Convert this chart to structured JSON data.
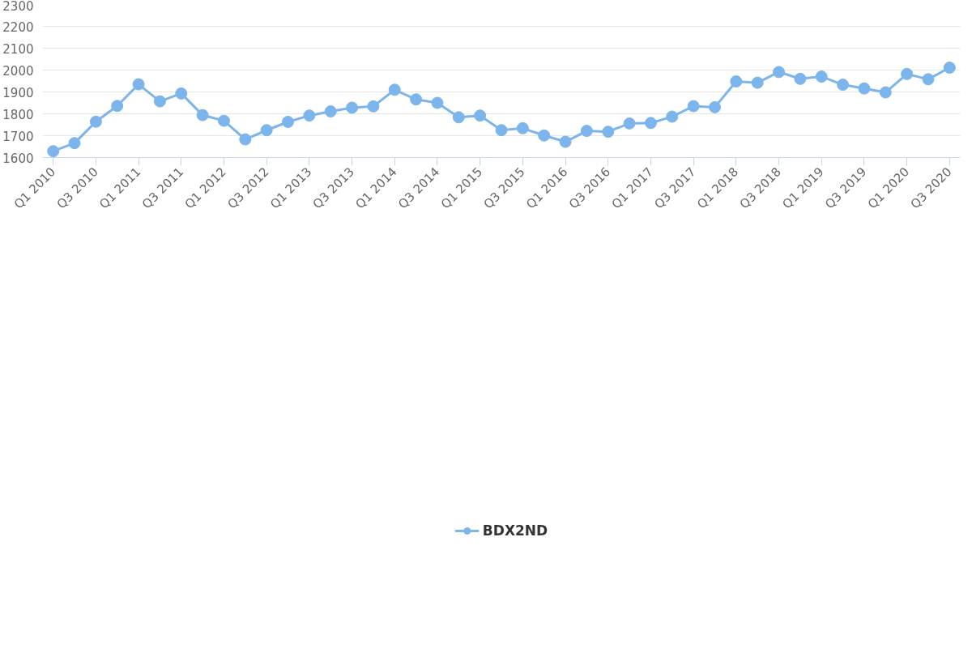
{
  "chart_data": {
    "type": "line",
    "categories": [
      "Q1 2010",
      null,
      "Q3 2010",
      null,
      "Q1 2011",
      null,
      "Q3 2011",
      null,
      "Q1 2012",
      null,
      "Q3 2012",
      null,
      "Q1 2013",
      null,
      "Q3 2013",
      null,
      "Q1 2014",
      null,
      "Q3 2014",
      null,
      "Q1 2015",
      null,
      "Q3 2015",
      null,
      "Q1 2016",
      null,
      "Q3 2016",
      null,
      "Q1 2017",
      null,
      "Q3 2017",
      null,
      "Q1 2018",
      null,
      "Q3 2018",
      null,
      "Q1 2019",
      null,
      "Q3 2019",
      null,
      "Q1 2020",
      null,
      "Q3 2020"
    ],
    "series": [
      {
        "name": "BDX2ND",
        "color": "#7cb5ec",
        "values": [
          1629,
          1666,
          1764,
          1836,
          1935,
          1857,
          1893,
          1794,
          1768,
          1683,
          1725,
          1763,
          1792,
          1811,
          1828,
          1834,
          1910,
          1866,
          1850,
          1784,
          1792,
          1725,
          1734,
          1701,
          1672,
          1722,
          1718,
          1756,
          1758,
          1787,
          1835,
          1830,
          1948,
          1942,
          1991,
          1960,
          1970,
          1933,
          1916,
          1898,
          1982,
          1958,
          2011
        ]
      }
    ],
    "ylim": [
      1600,
      2300
    ],
    "yticks": [
      1600,
      1700,
      1800,
      1900,
      2000,
      2100,
      2200,
      2300
    ],
    "grid": "y",
    "legend": "bottom",
    "marker": "circle",
    "line_style": "solid"
  }
}
